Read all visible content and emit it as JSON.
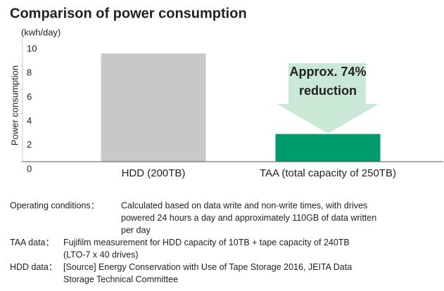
{
  "chart_data": {
    "type": "bar",
    "title": "Comparison of power consumption",
    "unit": "(kwh/day)",
    "ylabel": "Power consumption",
    "categories": [
      "HDD (200TB)",
      "TAA (total capacity of 250TB)"
    ],
    "values": [
      9.0,
      2.3
    ],
    "colors": [
      "#c8c8c8",
      "#009b6b"
    ],
    "annotation": [
      "Approx. 74%",
      "reduction"
    ],
    "annotation_color": "#c9e8d6",
    "ylim": [
      0,
      10
    ],
    "yticks": [
      0,
      2,
      4,
      6,
      8,
      10
    ],
    "grid": false
  },
  "notes": [
    {
      "label": "Operating conditions：",
      "lines": [
        "Calculated based on data write and non-write times, with drives",
        "powered 24 hours a day and approximately 110GB of data written",
        "per day"
      ]
    },
    {
      "label": "TAA data：",
      "lines": [
        "Fujifilm measurement for HDD capacity of 10TB + tape capacity of 240TB",
        "(LTO-7 x 40 drives)"
      ]
    },
    {
      "label": "HDD data：",
      "lines": [
        "[Source] Energy Conservation with Use of Tape Storage 2016, JEITA Data",
        "Storage Technical Committee"
      ]
    }
  ]
}
